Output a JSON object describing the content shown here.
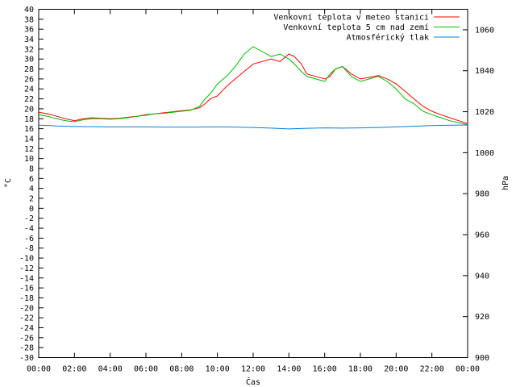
{
  "chart_data": {
    "type": "line",
    "xlabel": "Čas",
    "ylabel": "°C",
    "y2label": "hPa",
    "x_ticks": [
      "00:00",
      "02:00",
      "04:00",
      "06:00",
      "08:00",
      "10:00",
      "12:00",
      "14:00",
      "16:00",
      "18:00",
      "20:00",
      "22:00",
      "00:00"
    ],
    "xlim": [
      0,
      24
    ],
    "ylim": [
      -30,
      40
    ],
    "y_ticks": [
      40,
      38,
      36,
      34,
      32,
      30,
      28,
      26,
      24,
      22,
      20,
      18,
      16,
      14,
      12,
      10,
      8,
      6,
      4,
      2,
      0,
      -2,
      -4,
      -6,
      -8,
      -10,
      -12,
      -14,
      -16,
      -18,
      -20,
      -22,
      -24,
      -26,
      -28,
      -30
    ],
    "y2lim": [
      900,
      1070
    ],
    "y2_ticks": [
      1060,
      1040,
      1020,
      1000,
      980,
      960,
      940,
      920,
      900
    ],
    "grid": false,
    "legend_position": "top-right",
    "series": [
      {
        "name": "Venkovní teplota v meteo stanici",
        "color": "#ff0000",
        "axis": "left",
        "x": [
          0,
          0.5,
          1,
          1.5,
          2,
          2.5,
          3,
          3.5,
          4,
          4.5,
          5,
          5.5,
          6,
          6.5,
          7,
          7.5,
          8,
          8.5,
          9,
          9.3,
          9.6,
          10,
          10.5,
          11,
          11.5,
          12,
          12.5,
          13,
          13.5,
          14,
          14.3,
          14.7,
          15,
          15.5,
          16,
          16.3,
          16.6,
          17,
          17.5,
          18,
          18.5,
          19,
          19.5,
          20,
          20.5,
          21,
          21.5,
          22,
          22.5,
          23,
          23.5,
          24
        ],
        "y": [
          19.3,
          19,
          18.5,
          18,
          17.6,
          18,
          18.2,
          18.1,
          18,
          18.1,
          18.3,
          18.5,
          18.8,
          19,
          19.2,
          19.4,
          19.6,
          19.8,
          20.2,
          21,
          22,
          22.6,
          24.5,
          26,
          27.5,
          29,
          29.5,
          30,
          29.5,
          31,
          30.5,
          29,
          27,
          26.5,
          26,
          26.5,
          28,
          28.5,
          27,
          26,
          26.3,
          26.7,
          26,
          25,
          23.5,
          22,
          20.5,
          19.5,
          18.8,
          18.2,
          17.6,
          17
        ]
      },
      {
        "name": "Venkovní teplota 5 cm nad zemí",
        "color": "#00bb00",
        "axis": "left",
        "x": [
          0,
          0.5,
          1,
          1.5,
          2,
          2.5,
          3,
          3.5,
          4,
          4.5,
          5,
          5.5,
          6,
          6.5,
          7,
          7.5,
          8,
          8.5,
          9,
          9.3,
          9.6,
          10,
          10.5,
          11,
          11.5,
          12,
          12.5,
          13,
          13.5,
          14,
          14.3,
          14.7,
          15,
          15.5,
          16,
          16.3,
          16.6,
          17,
          17.5,
          18,
          18.5,
          19,
          19.5,
          20,
          20.5,
          21,
          21.5,
          22,
          22.5,
          23,
          23.5,
          24
        ],
        "y": [
          18.8,
          18.5,
          18,
          17.6,
          17.4,
          17.8,
          18,
          18,
          17.9,
          18,
          18.2,
          18.5,
          18.7,
          19,
          19.1,
          19.3,
          19.5,
          19.7,
          20.5,
          22,
          23,
          25,
          26.5,
          28.5,
          31,
          32.5,
          31.5,
          30.5,
          31,
          30,
          29,
          27.5,
          26.5,
          26,
          25.5,
          27,
          28,
          28.5,
          26.5,
          25.5,
          26,
          26.5,
          25.5,
          24,
          22,
          21,
          19.5,
          18.8,
          18.2,
          17.6,
          17.2,
          16.8
        ]
      },
      {
        "name": "Atmosférický tlak",
        "color": "#0080e0",
        "axis": "right",
        "x": [
          0,
          1,
          2,
          3,
          4,
          5,
          6,
          7,
          8,
          9,
          10,
          11,
          12,
          13,
          14,
          15,
          16,
          17,
          18,
          19,
          20,
          21,
          22,
          23,
          24
        ],
        "y": [
          1013.5,
          1013,
          1012.8,
          1012.7,
          1012.6,
          1012.6,
          1012.6,
          1012.5,
          1012.5,
          1012.5,
          1012.6,
          1012.5,
          1012.3,
          1012,
          1011.6,
          1011.9,
          1012.1,
          1012,
          1012.1,
          1012.3,
          1012.6,
          1012.9,
          1013.2,
          1013.4,
          1013.5
        ]
      }
    ]
  }
}
